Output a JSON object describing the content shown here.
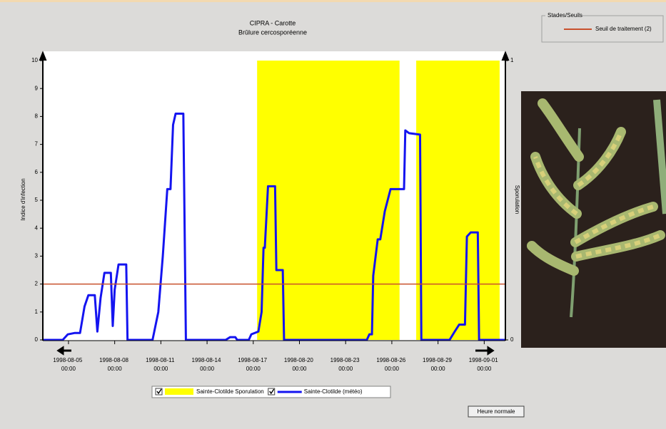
{
  "chart_data": {
    "type": "line",
    "title": "CIPRA - Carotte",
    "subtitle": "Brûlure cercosporéenne",
    "y_label": "Indice d'infection",
    "y2_label": "Sporulation",
    "xlim": [
      "1998-08-03T08:00",
      "1998-09-02T09:00"
    ],
    "xticks": [
      {
        "value": "1998-08-05T00:00",
        "label": "1998-08-05 00:00"
      },
      {
        "value": "1998-08-08T00:00",
        "label": "1998-08-08 00:00"
      },
      {
        "value": "1998-08-11T00:00",
        "label": "1998-08-11 00:00"
      },
      {
        "value": "1998-08-14T00:00",
        "label": "1998-08-14 00:00"
      },
      {
        "value": "1998-08-17T00:00",
        "label": "1998-08-17 00:00"
      },
      {
        "value": "1998-08-20T00:00",
        "label": "1998-08-20 00:00"
      },
      {
        "value": "1998-08-23T00:00",
        "label": "1998-08-23 00:00"
      },
      {
        "value": "1998-08-26T00:00",
        "label": "1998-08-26 00:00"
      },
      {
        "value": "1998-08-29T00:00",
        "label": "1998-08-29 00:00"
      },
      {
        "value": "1998-09-01T00:00",
        "label": "1998-09-01 00:00"
      }
    ],
    "ylim": [
      0,
      10
    ],
    "yticks": [
      0,
      1,
      2,
      3,
      4,
      5,
      6,
      7,
      8,
      9,
      10
    ],
    "y2lim": [
      0,
      1
    ],
    "y2ticks": [
      0,
      1
    ],
    "threshold": {
      "name": "Seuil de traitement (2)",
      "value": 2,
      "color": "#c8502c"
    },
    "threshold_legend_title": "Stades/Seuils",
    "series": [
      {
        "name": "Sainte-Clotilde Sporulation",
        "color": "#ffff00",
        "axis": "y2",
        "style": "step-area",
        "x": [
          "1998-08-03T08:00",
          "1998-08-17T06:00",
          "1998-08-26T12:00",
          "1998-08-27T14:00",
          "1998-09-02T00:00"
        ],
        "values": [
          0,
          1,
          0,
          1,
          0
        ]
      },
      {
        "name": "Sainte-Clotilde (météo)",
        "color": "#1414f0",
        "style": "line",
        "x": [
          "1998-08-03T08:00",
          "1998-08-04T15:00",
          "1998-08-04T23:00",
          "1998-08-05T10:00",
          "1998-08-05T18:00",
          "1998-08-06T01:00",
          "1998-08-06T07:00",
          "1998-08-06T17:00",
          "1998-08-06T21:00",
          "1998-08-07T02:00",
          "1998-08-07T08:00",
          "1998-08-07T18:00",
          "1998-08-07T21:00",
          "1998-08-08T00:00",
          "1998-08-08T06:00",
          "1998-08-08T18:00",
          "1998-08-08T20:00",
          "1998-08-10T11:00",
          "1998-08-10T20:00",
          "1998-08-11T03:00",
          "1998-08-11T10:00",
          "1998-08-11T15:00",
          "1998-08-11T19:00",
          "1998-08-11T23:00",
          "1998-08-12T11:00",
          "1998-08-12T15:00",
          "1998-08-15T05:00",
          "1998-08-15T12:00",
          "1998-08-15T20:00",
          "1998-08-15T23:00",
          "1998-08-16T17:00",
          "1998-08-16T21:00",
          "1998-08-17T08:00",
          "1998-08-17T13:00",
          "1998-08-17T16:00",
          "1998-08-17T18:00",
          "1998-08-17T23:00",
          "1998-08-18T10:00",
          "1998-08-18T12:00",
          "1998-08-18T22:00",
          "1998-08-19T00:00",
          "1998-08-24T09:00",
          "1998-08-24T13:00",
          "1998-08-24T17:00",
          "1998-08-24T19:00",
          "1998-08-25T02:00",
          "1998-08-25T06:00",
          "1998-08-25T13:00",
          "1998-08-25T22:00",
          "1998-08-26T19:00",
          "1998-08-26T21:00",
          "1998-08-27T03:00",
          "1998-08-27T20:00",
          "1998-08-27T22:00",
          "1998-08-29T18:00",
          "1998-08-30T02:00",
          "1998-08-30T09:00",
          "1998-08-30T18:00",
          "1998-08-30T21:00",
          "1998-08-31T03:00",
          "1998-08-31T14:00",
          "1998-08-31T16:00",
          "1998-09-02T09:00"
        ],
        "values": [
          0,
          0,
          0.2,
          0.25,
          0.25,
          1.2,
          1.6,
          1.6,
          0.3,
          1.5,
          2.4,
          2.4,
          0.5,
          1.8,
          2.7,
          2.7,
          0,
          0,
          1,
          3,
          5.4,
          5.4,
          7.7,
          8.1,
          8.1,
          0,
          0,
          0.1,
          0.1,
          0,
          0,
          0.2,
          0.3,
          1,
          3.3,
          3.3,
          5.5,
          5.5,
          2.5,
          2.5,
          0,
          0,
          0.2,
          0.2,
          2.3,
          3.6,
          3.6,
          4.6,
          5.4,
          5.4,
          7.5,
          7.4,
          7.35,
          0,
          0,
          0.3,
          0.55,
          0.55,
          3.7,
          3.85,
          3.85,
          0,
          0
        ]
      }
    ],
    "button": "Heure normale"
  }
}
